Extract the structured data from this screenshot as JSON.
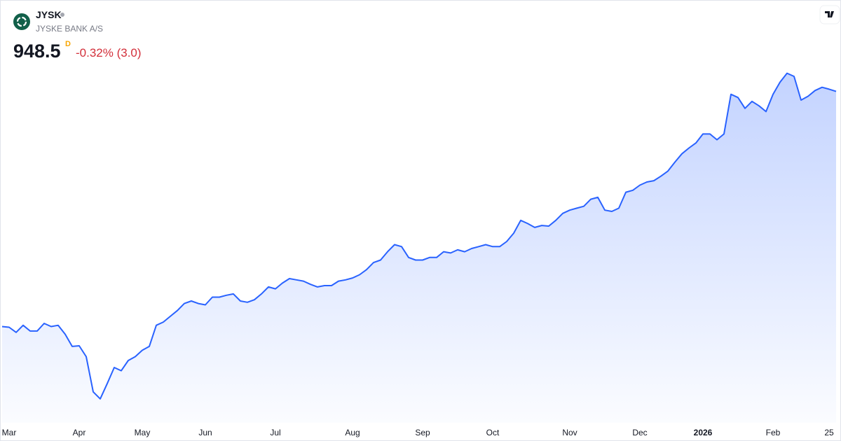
{
  "chart_data": {
    "type": "area",
    "title": "JYSK",
    "subtitle": "JYSKE BANK A/S",
    "last_price": 948.5,
    "interval": "D",
    "change_label": "-0.32% (3.0)",
    "color": "#2962ff",
    "ylim": [
      435,
      982
    ],
    "categories": [
      null,
      "Mar",
      null,
      null,
      null,
      null,
      null,
      null,
      null,
      null,
      null,
      "Apr",
      null,
      null,
      null,
      null,
      null,
      null,
      null,
      null,
      "May",
      null,
      null,
      null,
      null,
      null,
      null,
      null,
      null,
      "Jun",
      null,
      null,
      null,
      null,
      null,
      null,
      null,
      null,
      null,
      "Jul",
      null,
      null,
      null,
      null,
      null,
      null,
      null,
      null,
      null,
      null,
      "Aug",
      null,
      null,
      null,
      null,
      null,
      null,
      null,
      null,
      null,
      "Sep",
      null,
      null,
      null,
      null,
      null,
      null,
      null,
      null,
      null,
      "Oct",
      null,
      null,
      null,
      null,
      null,
      null,
      null,
      null,
      null,
      null,
      "Nov",
      null,
      null,
      null,
      null,
      null,
      null,
      null,
      null,
      null,
      "Dec",
      null,
      null,
      null,
      null,
      null,
      null,
      null,
      null,
      "2026",
      null,
      null,
      null,
      null,
      null,
      null,
      null,
      null,
      null,
      "Feb",
      null,
      null,
      null,
      null,
      null,
      null,
      null,
      "25",
      null
    ],
    "values": [
      581,
      580,
      572,
      583,
      574,
      574,
      586,
      581,
      583,
      569,
      550,
      551,
      534,
      479,
      468,
      492,
      517,
      512,
      528,
      534,
      544,
      550,
      583,
      588,
      597,
      606,
      617,
      621,
      617,
      615,
      627,
      627,
      630,
      632,
      621,
      619,
      623,
      632,
      643,
      640,
      649,
      656,
      654,
      652,
      647,
      643,
      645,
      645,
      652,
      654,
      657,
      662,
      670,
      681,
      685,
      698,
      709,
      706,
      689,
      685,
      685,
      689,
      689,
      698,
      696,
      701,
      698,
      703,
      706,
      709,
      706,
      706,
      714,
      727,
      747,
      742,
      736,
      739,
      738,
      747,
      758,
      763,
      766,
      769,
      780,
      783,
      763,
      761,
      766,
      791,
      794,
      802,
      807,
      809,
      816,
      824,
      838,
      851,
      860,
      868,
      882,
      882,
      873,
      882,
      944,
      939,
      922,
      933,
      926,
      917,
      944,
      963,
      977,
      972,
      935,
      941,
      950,
      955,
      952,
      948.5
    ]
  }
}
